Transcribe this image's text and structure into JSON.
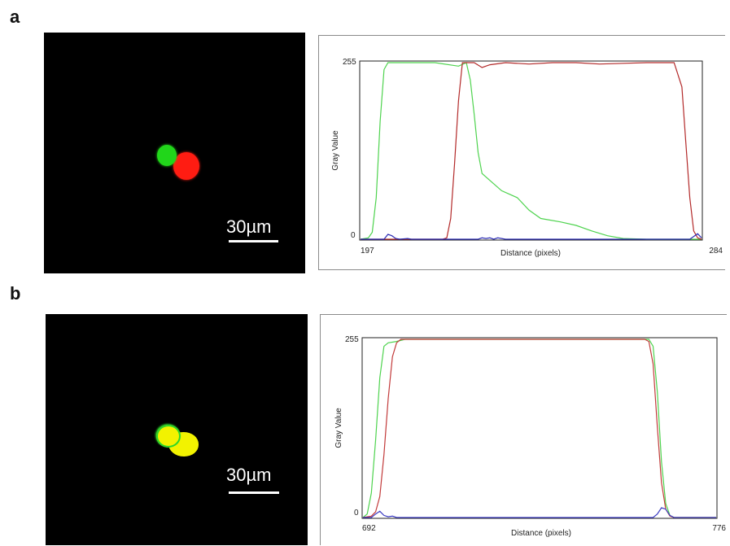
{
  "panels": [
    {
      "letter": "a",
      "scale_bar_label": "30µm",
      "micro": {
        "mode": "separate",
        "colors": {
          "green": "#21d61a",
          "red": "#ff1c12"
        }
      },
      "chart_data": {
        "type": "line",
        "title": "",
        "xlabel": "Distance (pixels)",
        "ylabel": "Gray Value",
        "xlim": [
          197,
          284
        ],
        "ylim": [
          0,
          255
        ],
        "x_ticks": [
          "197",
          "284"
        ],
        "y_ticks": [
          "0",
          "255"
        ],
        "grid": false,
        "series": [
          {
            "color": "#4ed34e",
            "points": [
              [
                197,
                0
              ],
              [
                199,
                2
              ],
              [
                200,
                10
              ],
              [
                201,
                60
              ],
              [
                202,
                170
              ],
              [
                203,
                245
              ],
              [
                204,
                255
              ],
              [
                208,
                255
              ],
              [
                216,
                255
              ],
              [
                222,
                250
              ],
              [
                224,
                255
              ],
              [
                225,
                230
              ],
              [
                226,
                180
              ],
              [
                227,
                125
              ],
              [
                228,
                95
              ],
              [
                230,
                85
              ],
              [
                233,
                70
              ],
              [
                237,
                60
              ],
              [
                240,
                42
              ],
              [
                243,
                30
              ],
              [
                248,
                25
              ],
              [
                252,
                20
              ],
              [
                256,
                12
              ],
              [
                260,
                5
              ],
              [
                264,
                1
              ],
              [
                270,
                0
              ],
              [
                284,
                0
              ]
            ]
          },
          {
            "color": "#b32a2a",
            "points": [
              [
                197,
                0
              ],
              [
                218,
                0
              ],
              [
                219,
                2
              ],
              [
                220,
                30
              ],
              [
                221,
                110
              ],
              [
                222,
                200
              ],
              [
                223,
                255
              ],
              [
                226,
                255
              ],
              [
                228,
                248
              ],
              [
                230,
                252
              ],
              [
                234,
                255
              ],
              [
                240,
                253
              ],
              [
                246,
                255
              ],
              [
                252,
                255
              ],
              [
                258,
                253
              ],
              [
                270,
                255
              ],
              [
                277,
                255
              ],
              [
                279,
                220
              ],
              [
                280,
                140
              ],
              [
                281,
                60
              ],
              [
                282,
                12
              ],
              [
                283,
                2
              ],
              [
                284,
                0
              ]
            ]
          },
          {
            "color": "#2b2bb3",
            "points": [
              [
                197,
                0
              ],
              [
                203,
                0
              ],
              [
                204,
                7
              ],
              [
                205,
                5
              ],
              [
                206,
                1
              ],
              [
                207,
                0
              ],
              [
                209,
                1
              ],
              [
                210,
                0
              ],
              [
                227,
                0
              ],
              [
                228,
                2
              ],
              [
                229,
                1
              ],
              [
                230,
                2
              ],
              [
                231,
                0
              ],
              [
                232,
                2
              ],
              [
                233,
                1
              ],
              [
                234,
                0
              ],
              [
                281,
                0
              ],
              [
                282,
                4
              ],
              [
                283,
                8
              ],
              [
                284,
                2
              ]
            ]
          }
        ]
      }
    },
    {
      "letter": "b",
      "scale_bar_label": "30µm",
      "micro": {
        "mode": "merged",
        "colors": {
          "green": "#2ad62a",
          "yellow": "#f2f200"
        }
      },
      "chart_data": {
        "type": "line",
        "title": "",
        "xlabel": "Distance (pixels)",
        "ylabel": "Gray Value",
        "xlim": [
          692,
          776
        ],
        "ylim": [
          0,
          255
        ],
        "x_ticks": [
          "692",
          "776"
        ],
        "y_ticks": [
          "0",
          "255"
        ],
        "grid": false,
        "series": [
          {
            "color": "#4ed34e",
            "points": [
              [
                692,
                0
              ],
              [
                693,
                5
              ],
              [
                694,
                35
              ],
              [
                695,
                110
              ],
              [
                696,
                200
              ],
              [
                697,
                245
              ],
              [
                698,
                250
              ],
              [
                700,
                252
              ],
              [
                702,
                255
              ],
              [
                760,
                255
              ],
              [
                761,
                245
              ],
              [
                762,
                180
              ],
              [
                763,
                80
              ],
              [
                764,
                20
              ],
              [
                765,
                3
              ],
              [
                766,
                0
              ],
              [
                776,
                0
              ]
            ]
          },
          {
            "color": "#c23a3a",
            "points": [
              [
                692,
                0
              ],
              [
                694,
                2
              ],
              [
                695,
                8
              ],
              [
                696,
                30
              ],
              [
                697,
                90
              ],
              [
                698,
                170
              ],
              [
                699,
                230
              ],
              [
                700,
                250
              ],
              [
                701,
                255
              ],
              [
                759,
                255
              ],
              [
                760,
                252
              ],
              [
                761,
                220
              ],
              [
                762,
                130
              ],
              [
                763,
                50
              ],
              [
                764,
                12
              ],
              [
                765,
                2
              ],
              [
                766,
                0
              ],
              [
                776,
                0
              ]
            ]
          },
          {
            "color": "#3b3bc2",
            "points": [
              [
                692,
                0
              ],
              [
                694,
                0
              ],
              [
                695,
                5
              ],
              [
                696,
                9
              ],
              [
                697,
                3
              ],
              [
                698,
                1
              ],
              [
                699,
                2
              ],
              [
                700,
                0
              ],
              [
                761,
                0
              ],
              [
                762,
                5
              ],
              [
                763,
                14
              ],
              [
                764,
                12
              ],
              [
                765,
                3
              ],
              [
                766,
                0
              ],
              [
                776,
                0
              ]
            ]
          }
        ]
      }
    }
  ]
}
